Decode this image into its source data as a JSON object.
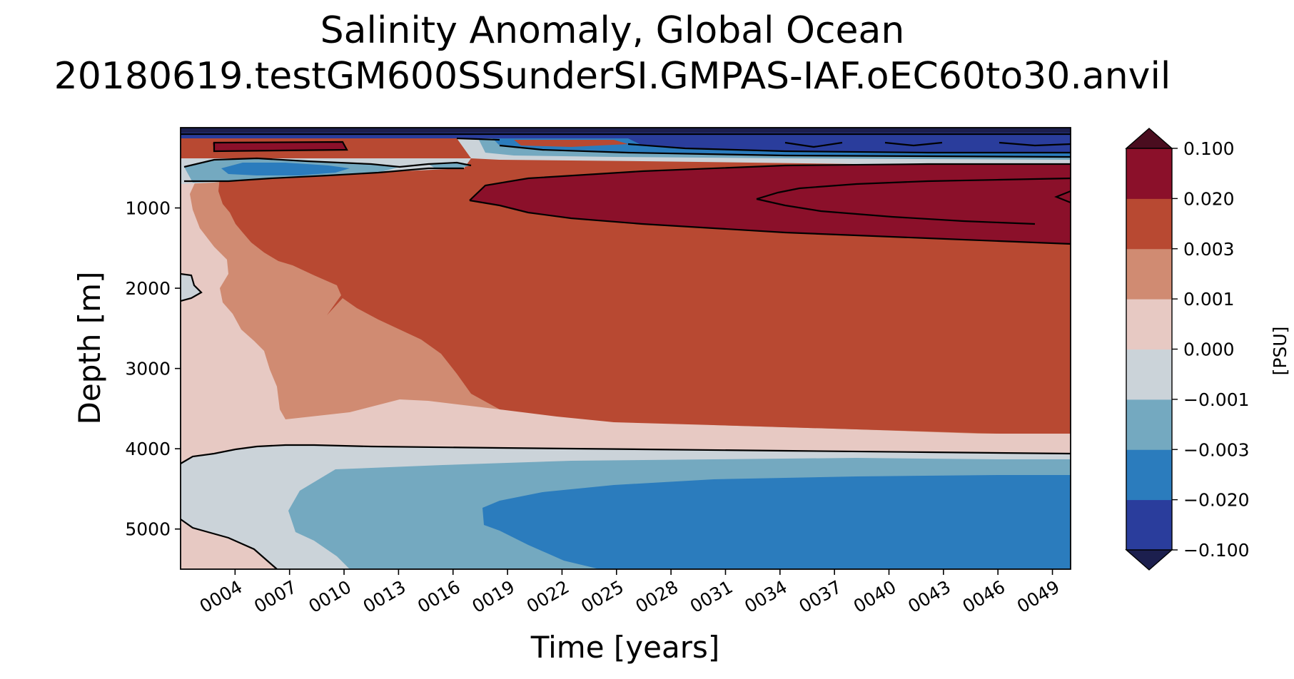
{
  "chart_data": {
    "type": "heatmap",
    "title": [
      "Salinity Anomaly, Global Ocean",
      "20180619.testGM600SSunderSI.GMPAS-IAF.oEC60to30.anvil"
    ],
    "xlabel": "Time [years]",
    "ylabel": "Depth [m]",
    "xlim": [
      1,
      50
    ],
    "ylim": [
      5500,
      0
    ],
    "y_inverted": true,
    "x_ticks": [
      4,
      7,
      10,
      13,
      16,
      19,
      22,
      25,
      28,
      31,
      34,
      37,
      40,
      43,
      46,
      49
    ],
    "x_tick_labels": [
      "0004",
      "0007",
      "0010",
      "0013",
      "0016",
      "0019",
      "0022",
      "0025",
      "0028",
      "0031",
      "0034",
      "0037",
      "0040",
      "0043",
      "0046",
      "0049"
    ],
    "y_ticks": [
      1000,
      2000,
      3000,
      4000,
      5000
    ],
    "y_tick_labels": [
      "1000",
      "2000",
      "3000",
      "4000",
      "5000"
    ],
    "colorbar": {
      "label": "[PSU]",
      "levels": [
        -0.1,
        -0.02,
        -0.003,
        -0.001,
        0.0,
        0.001,
        0.003,
        0.02,
        0.1
      ],
      "level_labels": [
        "−0.100",
        "−0.020",
        "−0.003",
        "−0.001",
        "0.000",
        "0.001",
        "0.003",
        "0.020",
        "0.100"
      ],
      "colors": [
        "#2a3d9c",
        "#2b7cbd",
        "#74a9c0",
        "#cbd3d9",
        "#e7c9c3",
        "#d08b72",
        "#b84932",
        "#8b102a"
      ],
      "under_color": "#1c1f4e",
      "over_color": "#4a0d1f",
      "extend": "both"
    },
    "regions": [
      {
        "level": "0.003 to 0.020",
        "x": [
          1,
          50
        ],
        "y": [
          350,
          3800
        ]
      },
      {
        "level": "0.020 to 0.100",
        "x": [
          18,
          50
        ],
        "y": [
          500,
          1450
        ]
      },
      {
        "level": "-0.020 to -0.003",
        "x": [
          19,
          50
        ],
        "y": [
          4300,
          5500
        ]
      },
      {
        "level": "-0.003 to -0.001",
        "x": [
          8,
          50
        ],
        "y": [
          4100,
          5500
        ]
      },
      {
        "level": "-0.001 to 0.000",
        "x": [
          1,
          50
        ],
        "y": [
          3950,
          5500
        ]
      },
      {
        "level": "below -0.020",
        "x": [
          1,
          50
        ],
        "y": [
          0,
          350
        ]
      }
    ],
    "grid": false,
    "legend": "colorbar-right"
  }
}
